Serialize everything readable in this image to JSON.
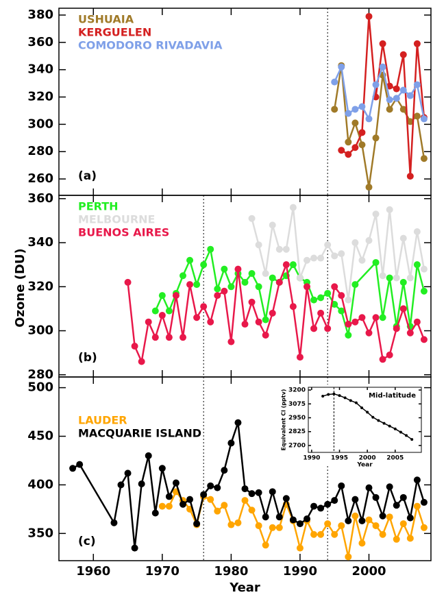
{
  "chart_data": [
    {
      "type": "line",
      "panel_label": "(a)",
      "xlim": [
        1955,
        2009
      ],
      "xticks": [
        1960,
        1970,
        1980,
        1990,
        2000
      ],
      "ylim": [
        248,
        385
      ],
      "yticks": [
        260,
        280,
        300,
        320,
        340,
        360,
        380
      ],
      "vlines": [
        1994
      ],
      "series": [
        {
          "name": "USHUAIA",
          "color": "#a07a28",
          "x": [
            1995,
            1996,
            1997,
            1998,
            1999,
            2000,
            2001,
            2002,
            2003,
            2004,
            2005,
            2006,
            2007,
            2008
          ],
          "values": [
            311,
            343,
            287,
            301,
            285,
            254,
            290,
            336,
            311,
            319,
            311,
            302,
            306,
            275
          ]
        },
        {
          "name": "KERGUELEN",
          "color": "#d42020",
          "x": [
            1996,
            1997,
            1998,
            1999,
            2000,
            2001,
            2002,
            2003,
            2004,
            2005,
            2006,
            2007,
            2008
          ],
          "values": [
            281,
            278,
            283,
            294,
            379,
            320,
            359,
            328,
            326,
            351,
            262,
            359,
            305
          ]
        },
        {
          "name": "COMODORO RIVADAVIA",
          "color": "#7fa0e8",
          "x": [
            1995,
            1996,
            1997,
            1998,
            1999,
            2000,
            2001,
            2002,
            2003,
            2004,
            2005,
            2006,
            2007,
            2008
          ],
          "values": [
            331,
            342,
            308,
            311,
            313,
            304,
            329,
            342,
            318,
            319,
            325,
            321,
            329,
            304
          ]
        }
      ]
    },
    {
      "type": "line",
      "panel_label": "(b)",
      "ylabel": "Ozone (DU)",
      "xlim": [
        1955,
        2009
      ],
      "xticks": [
        1960,
        1970,
        1980,
        1990,
        2000
      ],
      "ylim": [
        279,
        361.5
      ],
      "yticks": [
        280,
        300,
        320,
        340,
        360
      ],
      "vlines": [
        1976,
        1994
      ],
      "series": [
        {
          "name": "PERTH",
          "color": "#22ee22",
          "x": [
            1969,
            1970,
            1971,
            1972,
            1973,
            1974,
            1975,
            1976,
            1977,
            1978,
            1979,
            1980,
            1981,
            1982,
            1983,
            1984,
            1985,
            1986,
            1987,
            1988,
            1989,
            1990,
            1991,
            1992,
            1993,
            1994,
            1995,
            1996,
            1997,
            1998,
            2001,
            2002,
            2003,
            2004,
            2005,
            2006,
            2007,
            2008
          ],
          "values": [
            309,
            316,
            309,
            317,
            325,
            332,
            321,
            330,
            337,
            319,
            328,
            320,
            326,
            322,
            326,
            320,
            305,
            324,
            322,
            325,
            330,
            324,
            322,
            314,
            315,
            317,
            312,
            309,
            298,
            321,
            331,
            306,
            324,
            302,
            322,
            302,
            330,
            318
          ]
        },
        {
          "name": "MELBOURNE",
          "color": "#dcdcdc",
          "x": [
            1983,
            1984,
            1985,
            1986,
            1987,
            1988,
            1989,
            1990,
            1991,
            1992,
            1993,
            1994,
            1995,
            1996,
            1997,
            1998,
            1999,
            2000,
            2001,
            2002,
            2003,
            2004,
            2005,
            2006,
            2007,
            2008
          ],
          "values": [
            351,
            339,
            326,
            348,
            337,
            337,
            356,
            324,
            332,
            333,
            333,
            339,
            334,
            335,
            314,
            340,
            332,
            341,
            353,
            325,
            355,
            324,
            342,
            324,
            345,
            328
          ]
        },
        {
          "name": "BUENOS AIRES",
          "color": "#e8184a",
          "x": [
            1965,
            1966,
            1967,
            1968,
            1969,
            1970,
            1971,
            1972,
            1973,
            1974,
            1975,
            1976,
            1977,
            1978,
            1979,
            1980,
            1981,
            1982,
            1983,
            1984,
            1985,
            1986,
            1987,
            1988,
            1989,
            1990,
            1991,
            1992,
            1993,
            1994,
            1995,
            1996,
            1997,
            1998,
            1999,
            2000,
            2001,
            2002,
            2003,
            2004,
            2005,
            2006,
            2007,
            2008
          ],
          "values": [
            322,
            293,
            286,
            304,
            297,
            307,
            297,
            316,
            297,
            321,
            306,
            311,
            304,
            316,
            318,
            295,
            328,
            303,
            313,
            304,
            298,
            308,
            322,
            330,
            311,
            288,
            320,
            301,
            308,
            301,
            320,
            316,
            303,
            304,
            306,
            299,
            306,
            287,
            289,
            301,
            310,
            299,
            304,
            296
          ]
        }
      ]
    },
    {
      "type": "line",
      "panel_label": "(c)",
      "xlabel": "Year",
      "xlim": [
        1955,
        2009
      ],
      "xticks": [
        1960,
        1970,
        1980,
        1990,
        2000
      ],
      "ylim": [
        322,
        511
      ],
      "yticks": [
        350,
        400,
        450,
        500
      ],
      "vlines": [
        1976,
        1994
      ],
      "series": [
        {
          "name": "LAUDER",
          "color": "#ffa500",
          "x": [
            1970,
            1971,
            1972,
            1973,
            1974,
            1975,
            1976,
            1977,
            1978,
            1979,
            1980,
            1981,
            1982,
            1983,
            1984,
            1985,
            1986,
            1987,
            1988,
            1989,
            1990,
            1991,
            1992,
            1993,
            1994,
            1995,
            1996,
            1997,
            1998,
            1999,
            2000,
            2001,
            2002,
            2003,
            2004,
            2005,
            2006,
            2007,
            2008
          ],
          "values": [
            378,
            378,
            393,
            384,
            375,
            359,
            388,
            385,
            373,
            379,
            359,
            361,
            384,
            374,
            358,
            338,
            356,
            356,
            380,
            363,
            335,
            363,
            349,
            349,
            360,
            349,
            358,
            326,
            368,
            340,
            364,
            358,
            349,
            367,
            344,
            360,
            345,
            378,
            356
          ]
        },
        {
          "name": "MACQUARIE ISLAND",
          "color": "#000000",
          "x": [
            1957,
            1958,
            1963,
            1964,
            1965,
            1966,
            1967,
            1968,
            1969,
            1970,
            1971,
            1972,
            1973,
            1974,
            1975,
            1976,
            1977,
            1978,
            1979,
            1980,
            1981,
            1982,
            1983,
            1984,
            1985,
            1986,
            1987,
            1988,
            1989,
            1990,
            1991,
            1992,
            1993,
            1994,
            1995,
            1996,
            1997,
            1998,
            1999,
            2000,
            2001,
            2002,
            2003,
            2004,
            2005,
            2006,
            2007,
            2008
          ],
          "values": [
            417,
            421,
            361,
            400,
            412,
            335,
            401,
            430,
            371,
            417,
            388,
            402,
            380,
            385,
            360,
            390,
            399,
            397,
            415,
            443,
            464,
            396,
            391,
            392,
            367,
            393,
            367,
            386,
            364,
            360,
            365,
            378,
            376,
            380,
            384,
            399,
            363,
            385,
            363,
            397,
            387,
            368,
            398,
            379,
            387,
            366,
            405,
            382
          ]
        }
      ]
    },
    {
      "type": "line",
      "annotation": "Mid-latitude",
      "xlabel": "Year",
      "ylabel": "Equivalent Cl (pptv)",
      "xlim": [
        1989.4,
        2009.7
      ],
      "xticks": [
        1990,
        1995,
        2000,
        2005
      ],
      "ylim": [
        2638,
        3225
      ],
      "yticks": [
        2700,
        2825,
        2950,
        3075,
        3200
      ],
      "vlines": [
        1994
      ],
      "series": [
        {
          "color": "#000000",
          "x": [
            1992,
            1993,
            1994,
            1995,
            1996,
            1997,
            1998,
            1999,
            2000,
            2001,
            2002,
            2003,
            2004,
            2005,
            2006,
            2007,
            2008
          ],
          "values": [
            3145,
            3160,
            3165,
            3150,
            3130,
            3105,
            3085,
            3040,
            3000,
            2955,
            2925,
            2900,
            2875,
            2850,
            2820,
            2790,
            2755
          ]
        }
      ]
    }
  ]
}
